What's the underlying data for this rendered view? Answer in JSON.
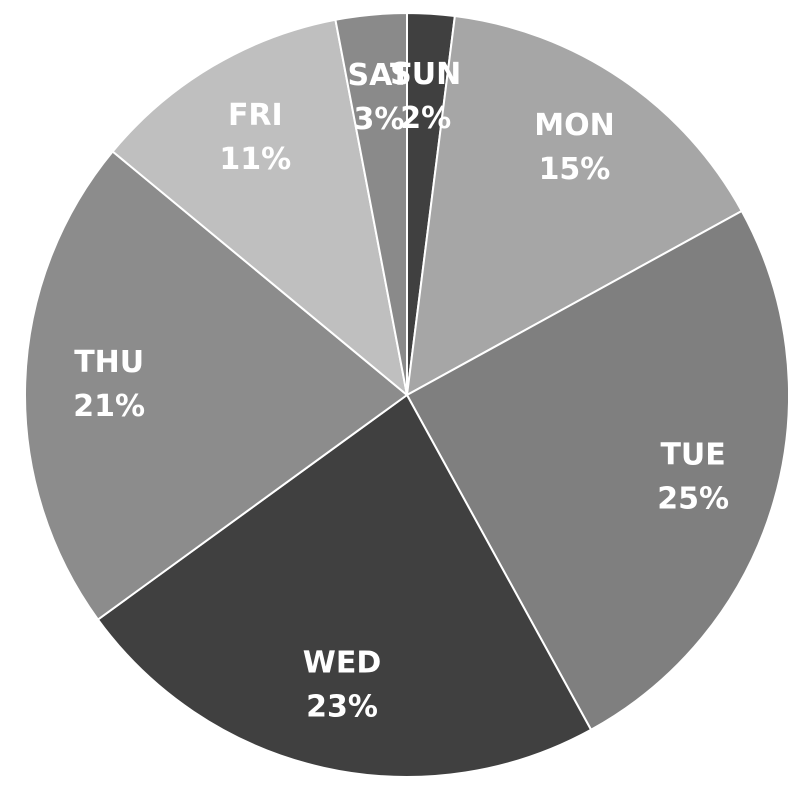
{
  "chart_data": {
    "type": "pie",
    "categories": [
      "SUN",
      "MON",
      "TUE",
      "WED",
      "THU",
      "FRI",
      "SAT"
    ],
    "values": [
      2,
      15,
      25,
      23,
      21,
      11,
      3
    ],
    "value_labels": [
      "2%",
      "15%",
      "25%",
      "23%",
      "21%",
      "11%",
      "3%"
    ],
    "colors": [
      "#404040",
      "#a6a6a6",
      "#7f7f7f",
      "#404040",
      "#8c8c8c",
      "#bfbfbf",
      "#8a8a8a"
    ]
  }
}
